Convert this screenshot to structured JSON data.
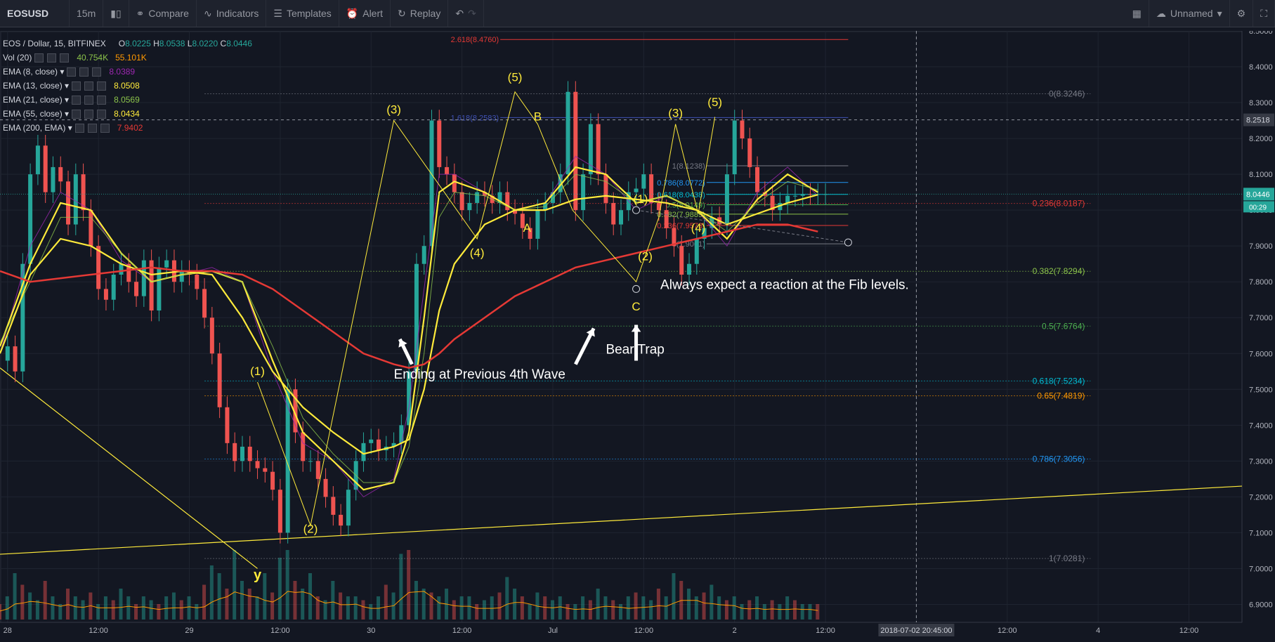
{
  "toolbar": {
    "symbol": "EOSUSD",
    "interval": "15m",
    "compare": "Compare",
    "indicators": "Indicators",
    "templates": "Templates",
    "alert": "Alert",
    "replay": "Replay",
    "layout_name": "Unnamed"
  },
  "legend": {
    "title": "EOS / Dollar, 15, BITFINEX",
    "ohlc": {
      "o": "8.0225",
      "h": "8.0538",
      "l": "8.0220",
      "c": "8.0446"
    },
    "vol": {
      "name": "Vol (20)",
      "v1": "40.754K",
      "v2": "55.101K"
    },
    "emas": [
      {
        "name": "EMA (8, close)",
        "value": "8.0389",
        "color": "#9c27b0"
      },
      {
        "name": "EMA (13, close)",
        "value": "8.0508",
        "color": "#ffeb3b"
      },
      {
        "name": "EMA (21, close)",
        "value": "8.0569",
        "color": "#8bc34a"
      },
      {
        "name": "EMA (55, close)",
        "value": "8.0434",
        "color": "#ffeb3b"
      },
      {
        "name": "EMA (200, EMA)",
        "value": "7.9402",
        "color": "#e53935"
      }
    ]
  },
  "chart_data": {
    "type": "line",
    "price_axis": {
      "min": 6.85,
      "max": 8.5,
      "ticks": [
        6.9,
        7.0,
        7.1,
        7.2,
        7.3,
        7.4,
        7.5,
        7.6,
        7.7,
        7.8,
        7.9,
        8.0,
        8.1,
        8.2,
        8.3,
        8.4,
        8.5
      ],
      "tick_labels": [
        "6.9000",
        "7.0000",
        "7.1000",
        "7.2000",
        "7.3000",
        "7.4000",
        "7.5000",
        "7.6000",
        "7.7000",
        "7.8000",
        "7.9000",
        "8.0000",
        "8.1000",
        "8.2000",
        "8.3000",
        "8.4000",
        "8.5000"
      ]
    },
    "time_axis": {
      "ticks": [
        {
          "t": 0.5,
          "label": "28"
        },
        {
          "t": 6.5,
          "label": "12:00"
        },
        {
          "t": 12.5,
          "label": "29"
        },
        {
          "t": 18.5,
          "label": "12:00"
        },
        {
          "t": 24.5,
          "label": "30"
        },
        {
          "t": 30.5,
          "label": "12:00"
        },
        {
          "t": 36.5,
          "label": "Jul"
        },
        {
          "t": 42.5,
          "label": "12:00"
        },
        {
          "t": 48.5,
          "label": "2"
        },
        {
          "t": 54.5,
          "label": "12:00"
        },
        {
          "t": 60.5,
          "label": "2018-07-02 20:45:00"
        },
        {
          "t": 66.5,
          "label": "12:00"
        },
        {
          "t": 72.5,
          "label": "4"
        },
        {
          "t": 78.5,
          "label": "12:00"
        }
      ],
      "t_range": [
        0,
        82
      ]
    },
    "price_x": [
      0,
      0.5,
      1,
      1.5,
      2,
      2.5,
      3,
      3.5,
      4,
      4.5,
      5,
      5.5,
      6,
      6.5,
      7,
      7.5,
      8,
      8.5,
      9,
      9.5,
      10,
      10.5,
      11,
      11.5,
      12,
      12.5,
      13,
      13.5,
      14,
      14.5,
      15,
      15.5,
      16,
      16.5,
      17,
      17.5,
      18,
      18.5,
      19,
      19.5,
      20,
      20.5,
      21,
      21.5,
      22,
      22.5,
      23,
      23.5,
      24,
      24.5,
      25,
      25.5,
      26,
      26.5,
      27,
      27.5,
      28,
      28.5,
      29,
      29.5,
      30,
      30.5,
      31,
      31.5,
      32,
      32.5,
      33,
      33.5,
      34,
      34.5,
      35,
      35.5,
      36,
      36.5,
      37,
      37.5,
      38,
      38.5,
      39,
      39.5,
      40,
      40.5,
      41,
      41.5,
      42,
      42.5,
      43,
      43.5,
      44,
      44.5,
      45,
      45.5,
      46,
      46.5,
      47,
      47.5,
      48,
      48.5,
      49,
      49.5,
      50,
      50.5,
      51,
      51.5,
      52,
      52.5,
      53,
      53.5,
      54,
      54.5
    ],
    "price_y": [
      7.58,
      7.62,
      7.55,
      7.85,
      8.1,
      8.18,
      8.05,
      8.12,
      8.08,
      7.96,
      8.1,
      8.0,
      7.9,
      7.78,
      7.75,
      7.82,
      7.85,
      7.8,
      7.76,
      7.86,
      7.72,
      7.84,
      7.86,
      7.8,
      7.83,
      7.82,
      7.78,
      7.7,
      7.6,
      7.45,
      7.35,
      7.3,
      7.34,
      7.3,
      7.28,
      7.27,
      7.22,
      7.1,
      7.5,
      7.38,
      7.3,
      7.3,
      7.25,
      7.2,
      7.15,
      7.12,
      7.22,
      7.3,
      7.35,
      7.36,
      7.33,
      7.34,
      7.35,
      7.4,
      7.55,
      7.85,
      7.9,
      8.25,
      8.12,
      8.1,
      8.05,
      8.0,
      8.02,
      8.05,
      8.04,
      8.02,
      8.05,
      8.0,
      7.99,
      7.95,
      7.92,
      8.0,
      8.02,
      8.05,
      8.1,
      8.33,
      8.0,
      8.1,
      8.24,
      8.1,
      8.02,
      7.96,
      8.0,
      8.05,
      8.06,
      8.1,
      8.02,
      8.0,
      7.95,
      7.9,
      7.82,
      7.85,
      7.92,
      7.95,
      7.98,
      7.96,
      8.1,
      8.25,
      8.2,
      8.12,
      8.05,
      8.04,
      8.0,
      8.02,
      8.04,
      8.04,
      8.045,
      8.0446,
      8.0446,
      8.0446
    ],
    "series": [
      {
        "name": "EMA (8, close)",
        "color": "#9c27b0",
        "x": [
          0,
          2,
          4,
          6,
          8,
          10,
          12,
          14,
          16,
          18,
          20,
          22,
          24,
          26,
          27,
          28,
          29,
          30,
          32,
          34,
          36,
          38,
          40,
          42,
          44,
          46,
          48,
          50,
          52,
          54
        ],
        "y": [
          7.6,
          7.9,
          8.05,
          8.0,
          7.86,
          7.8,
          7.82,
          7.84,
          7.8,
          7.55,
          7.35,
          7.3,
          7.2,
          7.25,
          7.45,
          7.78,
          8.1,
          8.1,
          8.05,
          8.0,
          8.02,
          8.15,
          8.1,
          8.0,
          8.04,
          8.0,
          7.9,
          8.05,
          8.12,
          8.04
        ]
      },
      {
        "name": "EMA (13, close)",
        "color": "#ffeb3b",
        "x": [
          0,
          2,
          4,
          6,
          8,
          10,
          12,
          14,
          16,
          18,
          20,
          22,
          24,
          26,
          27,
          28,
          29,
          30,
          32,
          34,
          36,
          38,
          40,
          42,
          44,
          46,
          48,
          50,
          52,
          54
        ],
        "y": [
          7.62,
          7.85,
          8.02,
          8.0,
          7.88,
          7.8,
          7.82,
          7.83,
          7.8,
          7.58,
          7.38,
          7.3,
          7.22,
          7.24,
          7.38,
          7.7,
          8.05,
          8.08,
          8.05,
          8.0,
          8.02,
          8.12,
          8.1,
          8.02,
          8.04,
          8.0,
          7.92,
          8.03,
          8.1,
          8.05
        ]
      },
      {
        "name": "EMA (21, close)",
        "color": "#8bc34a",
        "x": [
          0,
          2,
          4,
          6,
          8,
          10,
          12,
          14,
          16,
          18,
          20,
          22,
          24,
          26,
          27,
          28,
          29,
          30,
          32,
          34,
          36,
          38,
          40,
          42,
          44,
          46,
          48,
          50,
          52,
          54
        ],
        "y": [
          7.63,
          7.8,
          7.98,
          7.98,
          7.88,
          7.8,
          7.82,
          7.83,
          7.8,
          7.62,
          7.42,
          7.32,
          7.24,
          7.24,
          7.34,
          7.6,
          7.98,
          8.05,
          8.04,
          8.0,
          8.01,
          8.1,
          8.08,
          8.02,
          8.04,
          8.0,
          7.94,
          8.02,
          8.08,
          8.056
        ]
      },
      {
        "name": "EMA (55, close)",
        "color": "#ffeb3b",
        "x": [
          0,
          2,
          4,
          6,
          8,
          10,
          12,
          14,
          16,
          18,
          20,
          22,
          24,
          26,
          27,
          28,
          29,
          30,
          32,
          34,
          36,
          38,
          40,
          42,
          44,
          46,
          48,
          50,
          52,
          54
        ],
        "y": [
          7.6,
          7.82,
          7.92,
          7.9,
          7.85,
          7.82,
          7.83,
          7.82,
          7.7,
          7.55,
          7.45,
          7.38,
          7.32,
          7.34,
          7.36,
          7.5,
          7.72,
          7.85,
          7.96,
          8.0,
          8.0,
          8.03,
          8.04,
          8.03,
          8.02,
          8.0,
          7.96,
          7.99,
          8.02,
          8.043
        ]
      },
      {
        "name": "EMA (200, EMA)",
        "color": "#e53935",
        "x": [
          0,
          2,
          4,
          6,
          8,
          10,
          12,
          14,
          16,
          18,
          20,
          22,
          24,
          26,
          27,
          28,
          29,
          30,
          32,
          34,
          36,
          38,
          40,
          42,
          44,
          46,
          48,
          50,
          52,
          54
        ],
        "y": [
          7.83,
          7.8,
          7.81,
          7.82,
          7.83,
          7.84,
          7.83,
          7.83,
          7.82,
          7.78,
          7.72,
          7.66,
          7.6,
          7.57,
          7.56,
          7.57,
          7.6,
          7.64,
          7.7,
          7.76,
          7.8,
          7.84,
          7.86,
          7.88,
          7.9,
          7.92,
          7.94,
          7.96,
          7.96,
          7.9402
        ]
      }
    ],
    "last_price": {
      "value": 8.0446,
      "label": "8.0446",
      "countdown": "00:29"
    },
    "crosshair": {
      "price": 8.2518,
      "label": "8.2518",
      "t": 60.5
    },
    "fib_extension": {
      "t_start": 27,
      "t_end": 56,
      "levels": [
        {
          "ratio": "2.618",
          "price": 8.476,
          "label": "2.618(8.4760)",
          "color": "#e53935"
        },
        {
          "ratio": "1.618",
          "price": 8.2583,
          "label": "1.618(8.2583)",
          "color": "#3f51b5"
        }
      ]
    },
    "fib_large": {
      "t_start": 13.5,
      "t_end": 72,
      "levels": [
        {
          "price": 8.3246,
          "label": "0(8.3246)",
          "color": "#787b86"
        },
        {
          "price": 8.0187,
          "label": "0.236(8.0187)",
          "color": "#e53935"
        },
        {
          "price": 7.8294,
          "label": "0.382(7.8294)",
          "color": "#8bc34a"
        },
        {
          "price": 7.6764,
          "label": "0.5(7.6764)",
          "color": "#4caf50"
        },
        {
          "price": 7.5234,
          "label": "0.618(7.5234)",
          "color": "#00bcd4"
        },
        {
          "price": 7.4819,
          "label": "0.65(7.4819)",
          "color": "#ff9800"
        },
        {
          "price": 7.3056,
          "label": "0.786(7.3056)",
          "color": "#2196f3"
        },
        {
          "price": 7.0281,
          "label": "1(7.0281)",
          "color": "#787b86"
        }
      ]
    },
    "fib_small": {
      "t_start": 46,
      "t_end": 56,
      "levels": [
        {
          "price": 8.1238,
          "label": "1(8.1238)",
          "color": "#787b86"
        },
        {
          "price": 8.0772,
          "label": "0.786(8.0772)",
          "color": "#2196f3"
        },
        {
          "price": 8.0438,
          "label": "0.618(8.0438)",
          "color": "#00bcd4"
        },
        {
          "price": 8.0149,
          "label": "0.5(8.0149)",
          "color": "#4caf50"
        },
        {
          "price": 7.9889,
          "label": "0.382(7.9889)",
          "color": "#8bc34a"
        },
        {
          "price": 7.9573,
          "label": "0.236(7.9573)",
          "color": "#e53935"
        },
        {
          "price": 7.9061,
          "label": "0(7.9061)",
          "color": "#787b86"
        }
      ]
    },
    "wave_labels": [
      {
        "t": 17,
        "p": 7.54,
        "text": "(1)"
      },
      {
        "t": 20.5,
        "p": 7.1,
        "text": "(2)"
      },
      {
        "t": 26,
        "p": 8.27,
        "text": "(3)"
      },
      {
        "t": 31.5,
        "p": 7.87,
        "text": "(4)"
      },
      {
        "t": 34,
        "p": 8.36,
        "text": "(5)"
      },
      {
        "t": 35.5,
        "p": 8.25,
        "text": "B"
      },
      {
        "t": 34.8,
        "p": 7.94,
        "text": "A"
      },
      {
        "t": 42,
        "p": 7.72,
        "text": "C"
      },
      {
        "t": 42.3,
        "p": 8.02,
        "text": "(1)"
      },
      {
        "t": 42.6,
        "p": 7.86,
        "text": "(2)"
      },
      {
        "t": 44.6,
        "p": 8.26,
        "text": "(3)"
      },
      {
        "t": 46.1,
        "p": 7.94,
        "text": "(4)"
      },
      {
        "t": 47.2,
        "p": 8.29,
        "text": "(5)"
      },
      {
        "t": 17,
        "p": 6.97,
        "text": "y"
      }
    ],
    "wave_lines": [
      {
        "t": [
          17,
          20.5,
          26,
          31.5,
          34,
          35.5,
          37.8,
          42,
          43.5,
          44.6,
          46.1,
          47.2
        ],
        "p": [
          7.52,
          7.12,
          8.25,
          7.92,
          8.33,
          8.24,
          8.0,
          7.8,
          7.98,
          8.24,
          7.99,
          8.26
        ]
      }
    ],
    "trend_lines": [
      {
        "t": [
          0,
          17
        ],
        "p": [
          7.56,
          7.0
        ],
        "color": "#ffeb3b"
      },
      {
        "t": [
          0,
          82
        ],
        "p": [
          7.04,
          7.23
        ],
        "color": "#ffeb3b"
      }
    ],
    "dashed_line": {
      "t": [
        42,
        56
      ],
      "p": [
        8.0,
        7.91
      ]
    },
    "annotations": [
      {
        "t": 26,
        "p": 7.53,
        "text": "Ending at Previous 4th Wave"
      },
      {
        "t": 43.6,
        "p": 7.78,
        "text": "Always expect a reaction at the Fib levels."
      },
      {
        "t": 40,
        "p": 7.6,
        "text": "Bear Trap"
      }
    ],
    "volume": {
      "max": 1,
      "values": [
        0.2,
        0.3,
        0.6,
        0.45,
        0.35,
        0.25,
        0.5,
        0.3,
        0.2,
        0.4,
        0.3,
        0.25,
        0.35,
        0.2,
        0.3,
        0.25,
        0.4,
        0.3,
        0.2,
        0.3,
        0.25,
        0.2,
        0.3,
        0.35,
        0.25,
        0.3,
        0.2,
        0.45,
        0.7,
        0.6,
        0.4,
        0.9,
        0.5,
        0.4,
        0.3,
        0.6,
        0.35,
        0.8,
        0.9,
        0.5,
        0.4,
        0.6,
        0.3,
        0.25,
        0.5,
        0.35,
        0.3,
        0.3,
        0.25,
        0.2,
        0.3,
        0.45,
        0.35,
        0.85,
        0.9,
        0.5,
        0.4,
        0.35,
        0.3,
        0.4,
        0.25,
        0.3,
        0.3,
        0.2,
        0.25,
        0.3,
        0.35,
        0.55,
        0.4,
        0.3,
        0.2,
        0.35,
        0.3,
        0.25,
        0.3,
        0.2,
        0.2,
        0.3,
        0.25,
        0.4,
        0.3,
        0.25,
        0.2,
        0.3,
        0.35,
        0.3,
        0.25,
        0.4,
        0.3,
        0.6,
        0.5,
        0.4,
        0.3,
        0.35,
        0.45,
        0.3,
        0.25,
        0.3,
        0.2,
        0.25,
        0.3,
        0.2,
        0.25,
        0.2,
        0.3,
        0.25,
        0.2,
        0.2,
        0.2
      ]
    }
  }
}
